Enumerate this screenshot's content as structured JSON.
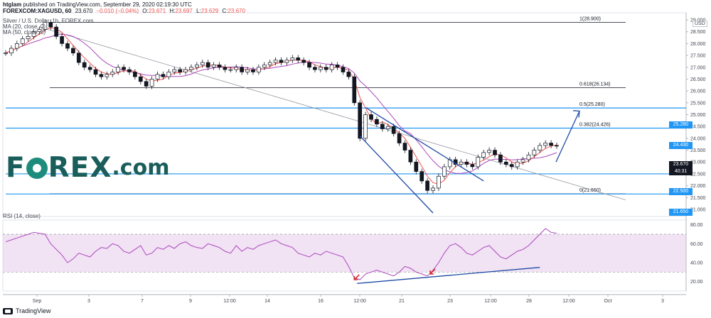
{
  "header": {
    "user": "htglam",
    "published": "published on TradingView.com, September 29, 2020 02:19:30 UTC",
    "symbol": "FOREXCOM:XAGUSD, 60",
    "price": "23.670",
    "change": "−0.010 (−0.04%)",
    "o_label": "O:",
    "o_val": "23.671",
    "h_label": "H:",
    "h_val": "23.697",
    "l_label": "L:",
    "l_val": "23.629",
    "c_label": "C:",
    "c_val": "23.670",
    "title": "Silver / U.S. Dollar, 1h, FOREX.com",
    "ma20": "MA (20, close, 0)",
    "ma50": "MA (50, close, 0)",
    "rsi": "RSI (14, close)"
  },
  "logo": {
    "text_before": "F",
    "text_after": "REX",
    "suffix": ".com"
  },
  "footer": {
    "brand": "TradingView"
  },
  "currency": "USD",
  "badges": {
    "b1": "25.280",
    "b2": "24.430",
    "b3": "23.670",
    "b4": "40:31",
    "b5": "22.500",
    "b6": "21.650"
  },
  "colors": {
    "up": "#26a69a",
    "candle": "#131722",
    "ma20": "#ef5350",
    "ma50": "#ab47bc",
    "fib": "#131722",
    "hline": "#2196f3",
    "trend": "#1e4aa3",
    "rsi": "#ab47bc",
    "rsi_band": "#e1bee7",
    "arrow_red": "#d32f2f",
    "badge_blue": "#2196f3",
    "badge_dark": "#131722"
  },
  "chart_data": [
    {
      "type": "line",
      "title": "Silver / U.S. Dollar, 1h, FOREX.com",
      "ylim": [
        20.7,
        29.3
      ],
      "yticks": [
        21.0,
        21.5,
        22.0,
        22.5,
        23.0,
        23.5,
        24.0,
        24.5,
        25.0,
        25.5,
        26.0,
        26.5,
        27.0,
        27.5,
        28.0,
        28.5,
        29.0
      ],
      "ytick_labels": [
        "21.000",
        "21.500",
        "22.000",
        "22.500",
        "23.000",
        "23.500",
        "24.000",
        "24.500",
        "25.000",
        "25.500",
        "26.000",
        "26.500",
        "27.000",
        "27.500",
        "28.000",
        "28.500",
        "29.000"
      ],
      "xtick_labels": [
        "Sep",
        "3",
        "7",
        "9",
        "12:00",
        "14",
        "16",
        "12:00",
        "21",
        "23",
        "12:00",
        "28",
        "12:00",
        "Oct",
        "3"
      ],
      "series": [
        {
          "name": "",
          "x": [
            0,
            1,
            2,
            3,
            4,
            5,
            6,
            7,
            8,
            9,
            10,
            11,
            12,
            13,
            14,
            15,
            16,
            17,
            18,
            19,
            20,
            21,
            22,
            23,
            24,
            25,
            26,
            27,
            28,
            29,
            30,
            31,
            32,
            33,
            34,
            35,
            36,
            37,
            38,
            39,
            40,
            41,
            42,
            43,
            44,
            45,
            46,
            47,
            48,
            49,
            50,
            51,
            52,
            53,
            54,
            55,
            56,
            57,
            58,
            59,
            60,
            61,
            62,
            63,
            64,
            65,
            66,
            67,
            68,
            69,
            70,
            71,
            72,
            73,
            74,
            75,
            76,
            77,
            78,
            79,
            80,
            81,
            82,
            83,
            84,
            85,
            86,
            87,
            88,
            89,
            90,
            91,
            92,
            93,
            94,
            95,
            96,
            97,
            98
          ],
          "values": [
            27.6,
            27.8,
            28.0,
            28.2,
            28.3,
            28.5,
            28.6,
            28.9,
            28.7,
            28.3,
            28.0,
            27.8,
            27.6,
            27.2,
            27.0,
            26.9,
            26.7,
            26.6,
            26.7,
            26.8,
            27.0,
            26.9,
            26.8,
            26.6,
            26.4,
            26.2,
            26.5,
            26.7,
            26.6,
            26.8,
            26.9,
            26.8,
            26.9,
            27.0,
            27.1,
            27.2,
            27.0,
            27.1,
            27.0,
            26.9,
            26.9,
            27.0,
            26.8,
            26.9,
            26.8,
            27.0,
            27.1,
            27.2,
            27.3,
            27.2,
            27.3,
            27.4,
            27.3,
            27.2,
            27.0,
            26.9,
            27.0,
            26.9,
            27.1,
            27.0,
            26.8,
            26.6,
            25.5,
            24.0,
            25.0,
            24.8,
            24.6,
            24.4,
            24.5,
            24.2,
            23.8,
            23.5,
            23.0,
            22.6,
            22.2,
            21.8,
            21.9,
            22.4,
            22.8,
            23.1,
            22.9,
            23.0,
            22.9,
            22.8,
            23.2,
            23.4,
            23.5,
            23.3,
            23.0,
            22.9,
            22.8,
            23.0,
            23.1,
            23.3,
            23.5,
            23.7,
            23.8,
            23.7,
            23.67
          ]
        }
      ],
      "annotations": [
        {
          "text": "1(28.900)",
          "value": 28.9
        },
        {
          "text": "0.618(26.134)",
          "value": 26.134
        },
        {
          "text": "0.5(25.280)",
          "value": 25.28
        },
        {
          "text": "0.382(24.426)",
          "value": 24.426
        },
        {
          "text": "0(21.660)",
          "value": 21.66
        }
      ],
      "horizontal_levels": [
        25.28,
        24.43,
        22.5,
        21.65
      ]
    },
    {
      "type": "line",
      "title": "RSI (14, close)",
      "ylim": [
        10,
        85
      ],
      "yticks": [
        20,
        40,
        60,
        80
      ],
      "ytick_labels": [
        "20.00",
        "40.00",
        "60.00",
        "80.00"
      ],
      "band": [
        30,
        70
      ],
      "series": [
        {
          "name": "",
          "values": [
            62,
            64,
            66,
            68,
            70,
            72,
            71,
            70,
            60,
            54,
            48,
            40,
            44,
            50,
            48,
            46,
            52,
            56,
            55,
            60,
            58,
            52,
            50,
            54,
            58,
            48,
            50,
            56,
            54,
            58,
            55,
            60,
            62,
            58,
            56,
            55,
            60,
            58,
            56,
            52,
            50,
            58,
            52,
            56,
            54,
            58,
            60,
            62,
            64,
            60,
            58,
            56,
            50,
            48,
            46,
            50,
            48,
            52,
            50,
            48,
            46,
            36,
            24,
            22,
            28,
            30,
            32,
            30,
            28,
            26,
            30,
            36,
            34,
            30,
            28,
            26,
            32,
            40,
            50,
            58,
            60,
            56,
            50,
            48,
            52,
            56,
            58,
            52,
            46,
            44,
            48,
            52,
            54,
            58,
            64,
            70,
            76,
            72,
            71
          ]
        }
      ]
    }
  ]
}
